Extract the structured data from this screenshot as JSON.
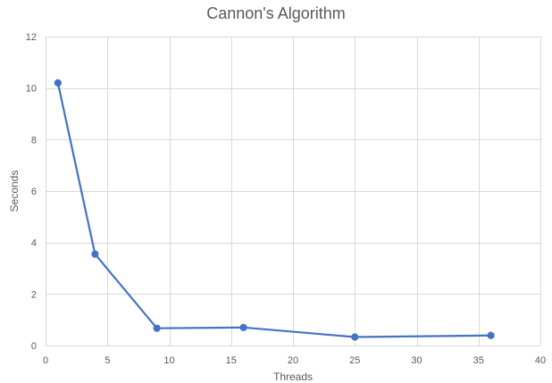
{
  "chart_data": {
    "type": "scatter",
    "title": "Cannon's Algorithm",
    "xlabel": "Threads",
    "ylabel": "Seconds",
    "xlim": [
      0,
      40
    ],
    "ylim": [
      0,
      12
    ],
    "x_ticks": [
      0,
      5,
      10,
      15,
      20,
      25,
      30,
      35,
      40
    ],
    "y_ticks": [
      0,
      2,
      4,
      6,
      8,
      10,
      12
    ],
    "grid": true,
    "legend": "none",
    "series": [
      {
        "x": [
          1,
          4,
          9,
          16,
          25,
          36
        ],
        "values": [
          10.2,
          3.55,
          0.67,
          0.7,
          0.33,
          0.39
        ],
        "color": "#4472c4",
        "markers": true,
        "lines": true
      }
    ]
  }
}
